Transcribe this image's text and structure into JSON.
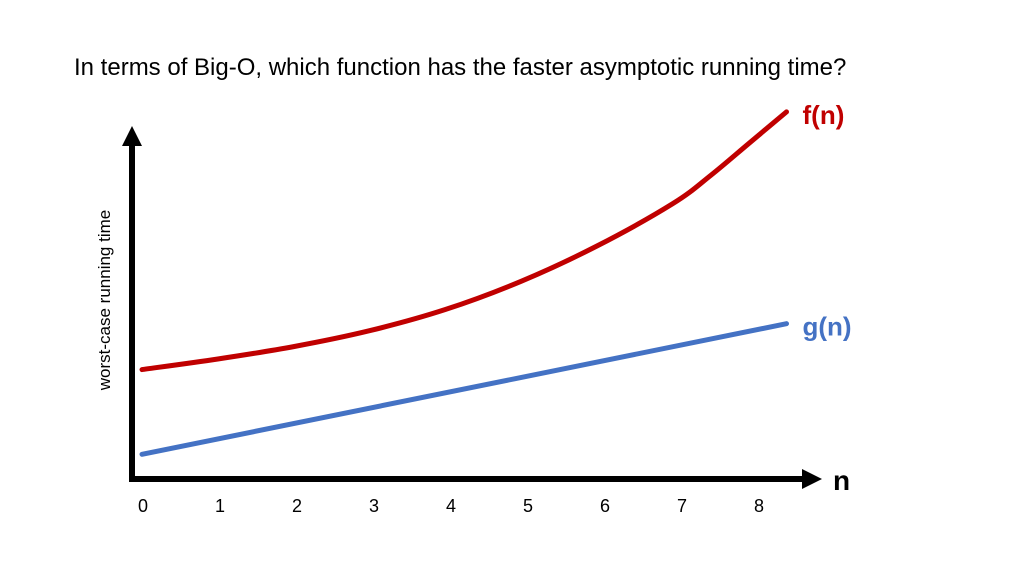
{
  "question": "In terms of Big-O, which function has the faster asymptotic running time?",
  "chart_data": {
    "type": "line",
    "xlabel": "n",
    "ylabel": "worst-case running time",
    "x_ticks": [
      "0",
      "1",
      "2",
      "3",
      "4",
      "5",
      "6",
      "7",
      "8"
    ],
    "xlim": [
      0,
      8.5
    ],
    "ylim": [
      0,
      10
    ],
    "grid": false,
    "legend": "inline-labels-at-line-ends",
    "series": [
      {
        "name": "f(n)",
        "color": "#C00000",
        "x": [
          0,
          1,
          2,
          3,
          4,
          5,
          6,
          7,
          7.5,
          8,
          8.5
        ],
        "y": [
          3.1,
          3.4,
          3.75,
          4.2,
          4.8,
          5.6,
          6.6,
          7.8,
          8.6,
          9.5,
          10.4
        ]
      },
      {
        "name": "g(n)",
        "color": "#4472C4",
        "x": [
          0,
          8.5
        ],
        "y": [
          0.7,
          4.4
        ]
      }
    ]
  }
}
